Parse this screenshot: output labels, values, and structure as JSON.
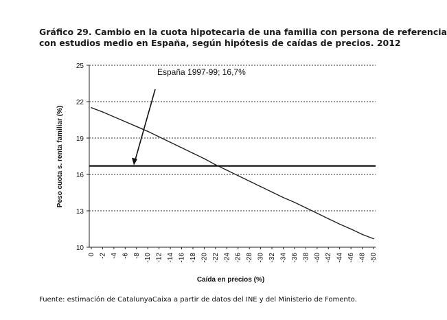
{
  "title_line1": "Gráfico 29. Cambio en la cuota hipotecaria de una familia con persona de referencia",
  "title_line2": "con estudios medio en España, según hipótesis de caídas de precios. 2012",
  "source": "Fuente: estimación de CatalunyaCaixa a partir de datos del INE y del Ministerio de Fomento.",
  "colors": {
    "line": "#222222",
    "grid": "#333333",
    "reference": "#111111"
  },
  "chart_data": {
    "type": "line",
    "title": "Gráfico 29. Cambio en la cuota hipotecaria de una familia con persona de referencia con estudios medio en España, según hipótesis de caídas de precios. 2012",
    "xlabel": "Caída en precios (%)",
    "ylabel": "Peso cuota s. renta familiar (%)",
    "x": [
      0,
      -2,
      -4,
      -6,
      -8,
      -10,
      -12,
      -14,
      -16,
      -18,
      -20,
      -22,
      -24,
      -26,
      -28,
      -30,
      -32,
      -34,
      -36,
      -38,
      -40,
      -42,
      -44,
      -46,
      -48,
      -50
    ],
    "x_tick_labels": [
      "0",
      "-2",
      "-4",
      "-6",
      "-8",
      "-10",
      "-12",
      "-14",
      "-16",
      "-18",
      "-20",
      "-22",
      "-24",
      "-26",
      "-28",
      "-30",
      "-32",
      "-34",
      "-36",
      "-38",
      "-40",
      "-42",
      "-44",
      "-46",
      "-48",
      "-50"
    ],
    "series": [
      {
        "name": "Peso cuota s. renta familiar",
        "values": [
          21.5,
          21.15,
          20.75,
          20.35,
          19.95,
          19.55,
          19.1,
          18.65,
          18.2,
          17.75,
          17.3,
          16.8,
          16.35,
          15.9,
          15.45,
          15.0,
          14.55,
          14.1,
          13.7,
          13.25,
          12.8,
          12.35,
          11.9,
          11.5,
          11.05,
          10.7
        ]
      }
    ],
    "reference_line": {
      "label": "España 1997-99; 16,7%",
      "value": 16.7
    },
    "y_ticks": [
      10,
      13,
      16,
      19,
      22,
      25
    ],
    "ylim": [
      10,
      25
    ],
    "grid": "horizontal-dotted",
    "legend": "none"
  }
}
